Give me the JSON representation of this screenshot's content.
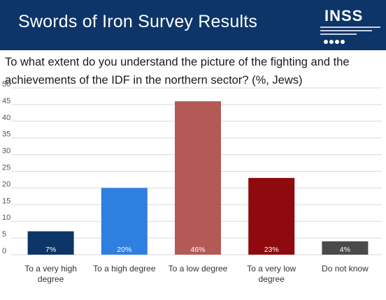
{
  "header": {
    "title": "Swords of Iron Survey Results",
    "logo_text": "INSS"
  },
  "colors": {
    "banner": "#0d3568",
    "grid": "#d9d9d9",
    "bars": [
      "#0d3568",
      "#2f7fe0",
      "#b35a57",
      "#8e0a0e",
      "#4a4a4a"
    ]
  },
  "chart_data": {
    "type": "bar",
    "title": "To what extent do you understand the picture of the fighting and the achievements of the IDF in the northern sector? (%, Jews)",
    "categories": [
      [
        "To a very high",
        "degree"
      ],
      [
        "To a high degree"
      ],
      [
        "To a low degree"
      ],
      [
        "To a very low",
        "degree"
      ],
      [
        "Do not know"
      ]
    ],
    "values": [
      7,
      20,
      46,
      23,
      4
    ],
    "value_labels": [
      "7%",
      "20%",
      "46%",
      "23%",
      "4%"
    ],
    "ylim": [
      0,
      50
    ],
    "yticks": [
      0,
      5,
      10,
      15,
      20,
      25,
      30,
      35,
      40,
      45,
      50
    ],
    "grid": true,
    "xlabel": "",
    "ylabel": ""
  }
}
